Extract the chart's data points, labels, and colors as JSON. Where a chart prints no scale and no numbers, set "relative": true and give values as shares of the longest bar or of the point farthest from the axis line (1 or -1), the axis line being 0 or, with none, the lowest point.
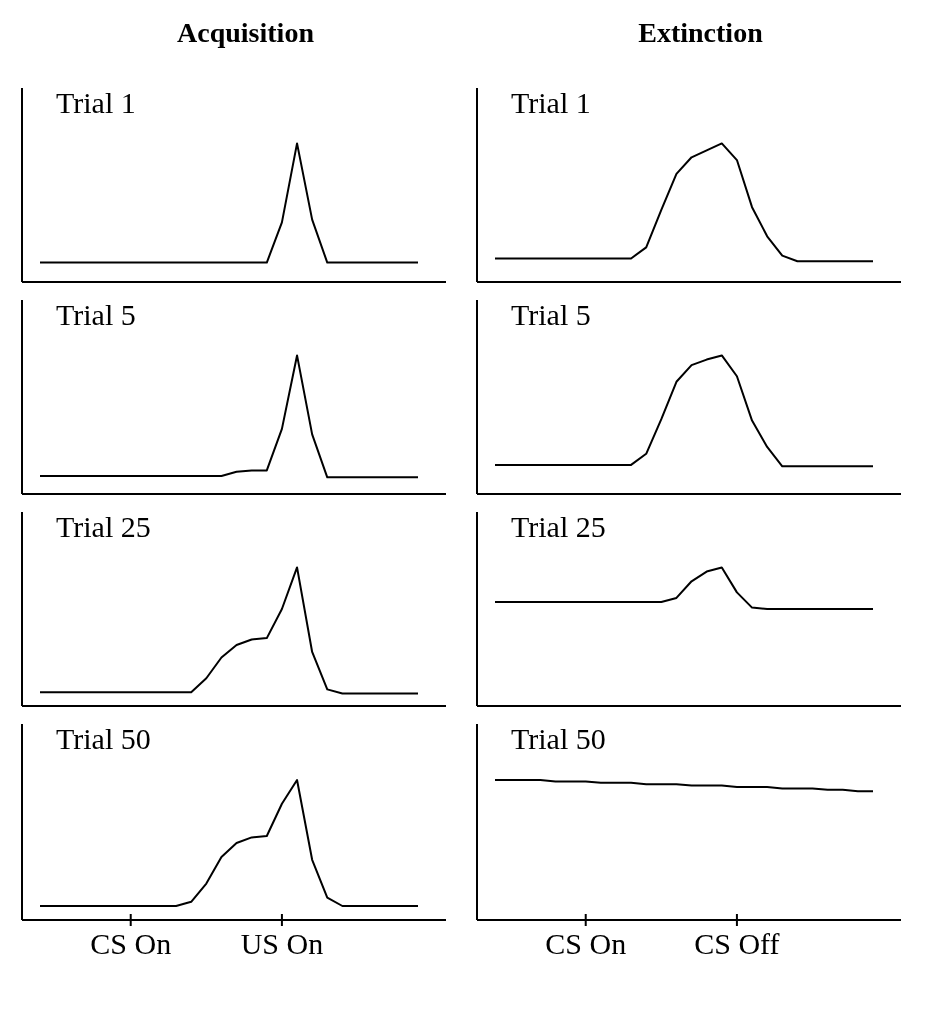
{
  "chart_data": [
    {
      "type": "line",
      "title": "Acquisition",
      "subtitle": "Trial 1",
      "relative": true,
      "color": "#000000",
      "categories": [
        null,
        null,
        null,
        null,
        null,
        null,
        null,
        null,
        null,
        null,
        null,
        null,
        null,
        null,
        null,
        null,
        null,
        null,
        null,
        null,
        null,
        null,
        null,
        null,
        null,
        null
      ],
      "values": [
        0.14,
        0.14,
        0.14,
        0.14,
        0.14,
        0.14,
        0.14,
        0.14,
        0.14,
        0.14,
        0.14,
        0.14,
        0.14,
        0.14,
        0.14,
        0.14,
        0.43,
        1,
        0.45,
        0.14,
        0.14,
        0.14,
        0.14,
        0.14,
        0.14,
        0.14
      ],
      "tick_labels": false
    },
    {
      "type": "line",
      "title": "Extinction",
      "subtitle": "Trial 1",
      "relative": true,
      "color": "#000000",
      "categories": [
        null,
        null,
        null,
        null,
        null,
        null,
        null,
        null,
        null,
        null,
        null,
        null,
        null,
        null,
        null,
        null,
        null,
        null,
        null,
        null,
        null,
        null,
        null,
        null,
        null,
        null
      ],
      "values": [
        0.17,
        0.17,
        0.17,
        0.17,
        0.17,
        0.17,
        0.17,
        0.17,
        0.17,
        0.17,
        0.25,
        0.52,
        0.78,
        0.9,
        0.95,
        1,
        0.88,
        0.54,
        0.33,
        0.19,
        0.15,
        0.15,
        0.15,
        0.15,
        0.15,
        0.15
      ],
      "tick_labels": false
    },
    {
      "type": "line",
      "subtitle": "Trial 5",
      "relative": true,
      "color": "#000000",
      "categories": [
        null,
        null,
        null,
        null,
        null,
        null,
        null,
        null,
        null,
        null,
        null,
        null,
        null,
        null,
        null,
        null,
        null,
        null,
        null,
        null,
        null,
        null,
        null,
        null,
        null,
        null
      ],
      "values": [
        0.13,
        0.13,
        0.13,
        0.13,
        0.13,
        0.13,
        0.13,
        0.13,
        0.13,
        0.13,
        0.13,
        0.13,
        0.13,
        0.16,
        0.17,
        0.17,
        0.47,
        1,
        0.43,
        0.12,
        0.12,
        0.12,
        0.12,
        0.12,
        0.12,
        0.12
      ],
      "tick_labels": false
    },
    {
      "type": "line",
      "subtitle": "Trial 5",
      "relative": true,
      "color": "#000000",
      "categories": [
        null,
        null,
        null,
        null,
        null,
        null,
        null,
        null,
        null,
        null,
        null,
        null,
        null,
        null,
        null,
        null,
        null,
        null,
        null,
        null,
        null,
        null,
        null,
        null,
        null,
        null
      ],
      "values": [
        0.21,
        0.21,
        0.21,
        0.21,
        0.21,
        0.21,
        0.21,
        0.21,
        0.21,
        0.21,
        0.29,
        0.54,
        0.81,
        0.93,
        0.97,
        1,
        0.85,
        0.53,
        0.34,
        0.2,
        0.2,
        0.2,
        0.2,
        0.2,
        0.2,
        0.2
      ],
      "tick_labels": false
    },
    {
      "type": "line",
      "subtitle": "Trial 25",
      "relative": true,
      "color": "#000000",
      "categories": [
        null,
        null,
        null,
        null,
        null,
        null,
        null,
        null,
        null,
        null,
        null,
        null,
        null,
        null,
        null,
        null,
        null,
        null,
        null,
        null,
        null,
        null,
        null,
        null,
        null,
        null
      ],
      "values": [
        0.1,
        0.1,
        0.1,
        0.1,
        0.1,
        0.1,
        0.1,
        0.1,
        0.1,
        0.1,
        0.1,
        0.2,
        0.35,
        0.44,
        0.48,
        0.49,
        0.7,
        1,
        0.39,
        0.12,
        0.09,
        0.09,
        0.09,
        0.09,
        0.09,
        0.09
      ],
      "tick_labels": false
    },
    {
      "type": "line",
      "subtitle": "Trial 25",
      "relative": true,
      "color": "#000000",
      "categories": [
        null,
        null,
        null,
        null,
        null,
        null,
        null,
        null,
        null,
        null,
        null,
        null,
        null,
        null,
        null,
        null,
        null,
        null,
        null,
        null,
        null,
        null,
        null,
        null,
        null,
        null
      ],
      "values": [
        0.75,
        0.75,
        0.75,
        0.75,
        0.75,
        0.75,
        0.75,
        0.75,
        0.75,
        0.75,
        0.75,
        0.75,
        0.78,
        0.9,
        0.97,
        1,
        0.82,
        0.71,
        0.7,
        0.7,
        0.7,
        0.7,
        0.7,
        0.7,
        0.7,
        0.7
      ],
      "tick_labels": false
    },
    {
      "type": "line",
      "subtitle": "Trial 50",
      "relative": true,
      "color": "#000000",
      "categories": [
        null,
        null,
        null,
        null,
        null,
        null,
        "CS On",
        null,
        null,
        null,
        null,
        null,
        null,
        null,
        null,
        null,
        "US On",
        null,
        null,
        null,
        null,
        null,
        null,
        null,
        null,
        null
      ],
      "values": [
        0.1,
        0.1,
        0.1,
        0.1,
        0.1,
        0.1,
        0.1,
        0.1,
        0.1,
        0.1,
        0.13,
        0.26,
        0.45,
        0.55,
        0.59,
        0.6,
        0.83,
        1,
        0.43,
        0.16,
        0.1,
        0.1,
        0.1,
        0.1,
        0.1,
        0.1
      ],
      "tick_labels": "x"
    },
    {
      "type": "line",
      "subtitle": "Trial 50",
      "relative": true,
      "color": "#000000",
      "categories": [
        null,
        null,
        null,
        null,
        null,
        null,
        "CS On",
        null,
        null,
        null,
        null,
        null,
        null,
        null,
        null,
        null,
        "CS Off",
        null,
        null,
        null,
        null,
        null,
        null,
        null,
        null,
        null
      ],
      "values": [
        1,
        1,
        1,
        1,
        0.99,
        0.99,
        0.99,
        0.98,
        0.98,
        0.98,
        0.97,
        0.97,
        0.97,
        0.96,
        0.96,
        0.96,
        0.95,
        0.95,
        0.95,
        0.94,
        0.94,
        0.94,
        0.93,
        0.93,
        0.92,
        0.92
      ],
      "tick_labels": "x"
    }
  ]
}
